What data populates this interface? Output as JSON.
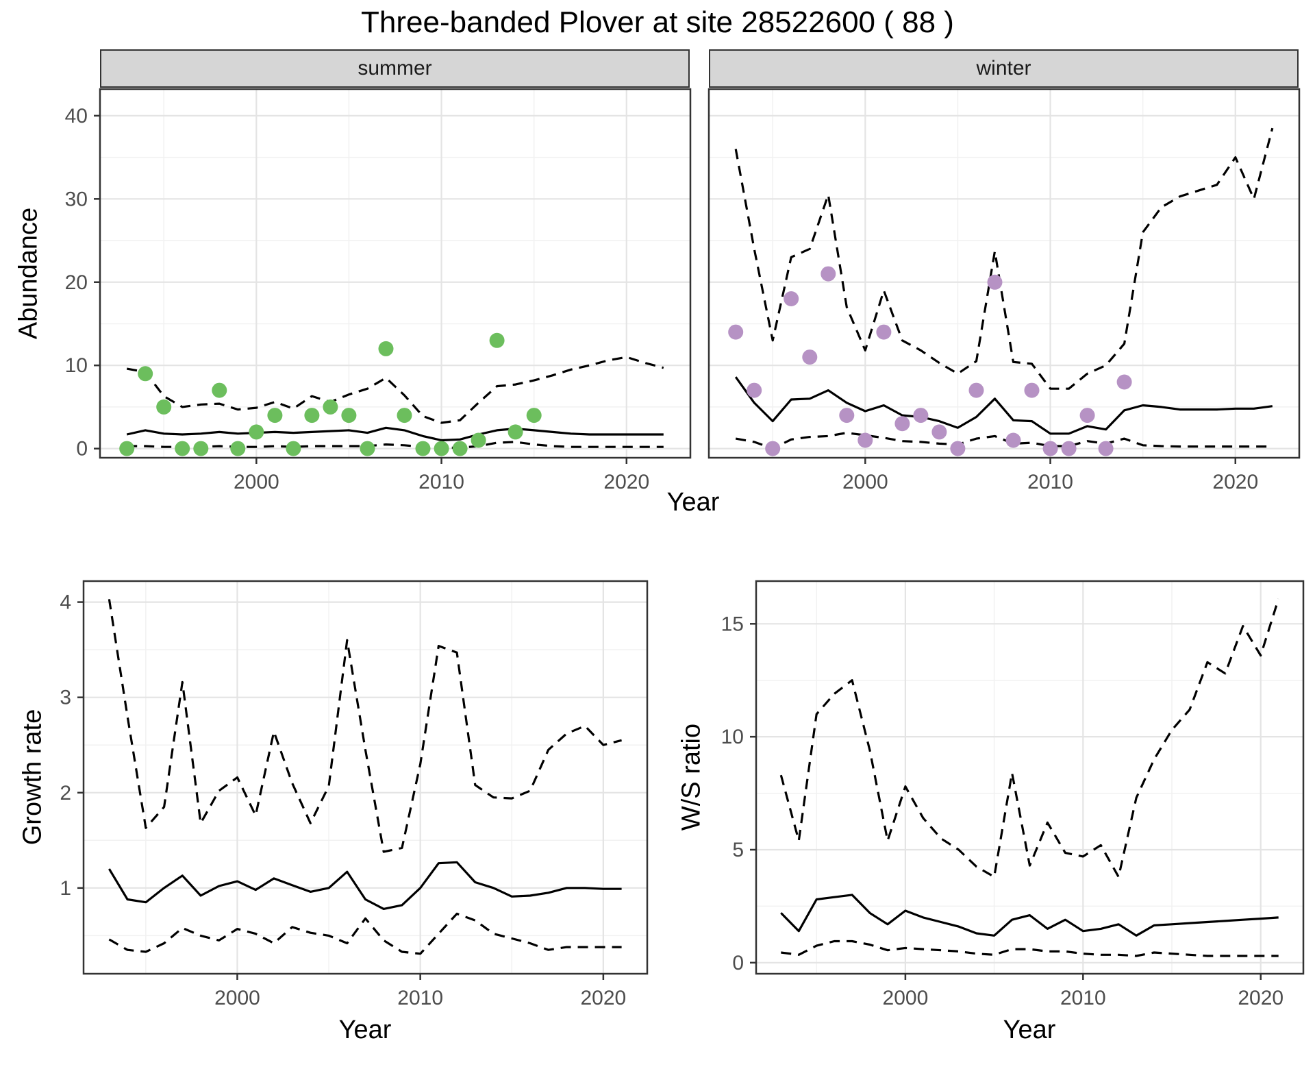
{
  "title": "Three-banded Plover at site 28522600 ( 88 )",
  "facets": {
    "summer": "summer",
    "winter": "winter"
  },
  "axes": {
    "abundance": "Abundance",
    "year": "Year",
    "growth": "Growth rate",
    "ws": "W/S ratio"
  },
  "colors": {
    "summer_points": "#6cbe5d",
    "winter_points": "#b692c4",
    "line": "#000000",
    "strip_bg": "#d6d6d6",
    "panel_border": "#333333",
    "grid_major": "#e4e4e4",
    "grid_minor": "#f1f1f1",
    "tick_text": "#4d4d4d"
  },
  "chart_data": [
    {
      "id": "abundance-summer",
      "type": "line",
      "facet_label": "summer",
      "xlabel": "Year",
      "ylabel": "Abundance",
      "xlim": [
        1991.55,
        2023.45
      ],
      "ylim": [
        -1.1,
        43.2
      ],
      "x_ticks": [
        2000,
        2010,
        2020
      ],
      "x_minor": [
        1995,
        2005,
        2015
      ],
      "y_ticks": [
        0,
        10,
        20,
        30,
        40
      ],
      "y_minor": [
        5,
        15,
        25,
        35
      ],
      "grid": true,
      "legend_position": "none",
      "years": [
        1993,
        1994,
        1995,
        1996,
        1997,
        1998,
        1999,
        2000,
        2001,
        2002,
        2003,
        2004,
        2005,
        2006,
        2007,
        2008,
        2009,
        2010,
        2011,
        2012,
        2013,
        2014,
        2015,
        2016,
        2017,
        2018,
        2019,
        2020,
        2021,
        2022
      ],
      "series": [
        {
          "name": "median",
          "style": "solid",
          "values": [
            1.7,
            2.2,
            1.8,
            1.7,
            1.8,
            2.0,
            1.8,
            1.9,
            2.0,
            1.9,
            2.0,
            2.1,
            2.2,
            1.9,
            2.5,
            2.2,
            1.5,
            1.0,
            1.1,
            1.7,
            2.2,
            2.4,
            2.2,
            2.0,
            1.8,
            1.7,
            1.7,
            1.7,
            1.7,
            1.7
          ]
        },
        {
          "name": "ci_upper",
          "style": "dashed",
          "values": [
            9.6,
            9.2,
            6.3,
            5.0,
            5.3,
            5.4,
            4.7,
            4.9,
            5.6,
            4.8,
            6.3,
            5.6,
            6.5,
            7.2,
            8.5,
            6.4,
            3.9,
            3.1,
            3.4,
            5.5,
            7.5,
            7.7,
            8.2,
            8.8,
            9.5,
            10.0,
            10.6,
            11.0,
            10.3,
            9.7
          ]
        },
        {
          "name": "ci_lower",
          "style": "dashed",
          "values": [
            0.3,
            0.3,
            0.2,
            0.2,
            0.2,
            0.3,
            0.2,
            0.2,
            0.3,
            0.2,
            0.3,
            0.3,
            0.3,
            0.3,
            0.5,
            0.4,
            0.2,
            0.1,
            0.1,
            0.3,
            0.7,
            0.8,
            0.5,
            0.3,
            0.2,
            0.2,
            0.2,
            0.2,
            0.2,
            0.2
          ]
        }
      ],
      "points": {
        "name": "observed-counts",
        "color_key": "summer_points",
        "years": [
          1993,
          1994,
          1995,
          1996,
          1997,
          1998,
          1999,
          2000,
          2001,
          2002,
          2003,
          2004,
          2005,
          2006,
          2007,
          2008,
          2009,
          2010,
          2011,
          2012,
          2013,
          2014,
          2015
        ],
        "values": [
          0,
          9,
          5,
          0,
          0,
          7,
          0,
          2,
          4,
          0,
          4,
          5,
          4,
          0,
          12,
          4,
          0,
          0,
          0,
          1,
          13,
          2,
          4
        ]
      }
    },
    {
      "id": "abundance-winter",
      "type": "line",
      "facet_label": "winter",
      "xlabel": "Year",
      "ylabel": "Abundance",
      "xlim": [
        1991.55,
        2023.45
      ],
      "ylim": [
        -1.1,
        43.2
      ],
      "x_ticks": [
        2000,
        2010,
        2020
      ],
      "x_minor": [
        1995,
        2005,
        2015
      ],
      "y_ticks": [
        0,
        10,
        20,
        30,
        40
      ],
      "y_minor": [
        5,
        15,
        25,
        35
      ],
      "grid": true,
      "legend_position": "none",
      "years": [
        1993,
        1994,
        1995,
        1996,
        1997,
        1998,
        1999,
        2000,
        2001,
        2002,
        2003,
        2004,
        2005,
        2006,
        2007,
        2008,
        2009,
        2010,
        2011,
        2012,
        2013,
        2014,
        2015,
        2016,
        2017,
        2018,
        2019,
        2020,
        2021,
        2022
      ],
      "series": [
        {
          "name": "median",
          "style": "solid",
          "values": [
            8.6,
            5.5,
            3.3,
            5.9,
            6.0,
            7.0,
            5.5,
            4.5,
            5.2,
            4.0,
            3.8,
            3.3,
            2.5,
            3.8,
            6.0,
            3.4,
            3.3,
            1.8,
            1.8,
            2.7,
            2.3,
            4.6,
            5.2,
            5.0,
            4.7,
            4.7,
            4.7,
            4.8,
            4.8,
            5.1
          ]
        },
        {
          "name": "ci_upper",
          "style": "dashed",
          "values": [
            36,
            24,
            13,
            23,
            24,
            30.5,
            17,
            11.8,
            19,
            13,
            11.8,
            10.3,
            9.0,
            10.5,
            23.7,
            10.4,
            10.2,
            7.2,
            7.2,
            9.0,
            10.0,
            12.6,
            26,
            29,
            30.3,
            31,
            31.7,
            35,
            30,
            38.5
          ]
        },
        {
          "name": "ci_lower",
          "style": "dashed",
          "values": [
            1.2,
            0.8,
            0.0,
            1.1,
            1.4,
            1.5,
            1.9,
            1.6,
            1.3,
            0.9,
            0.8,
            0.6,
            0.5,
            1.2,
            1.5,
            0.6,
            0.7,
            0.3,
            0.3,
            0.9,
            0.6,
            1.2,
            0.4,
            0.3,
            0.25,
            0.25,
            0.25,
            0.25,
            0.25,
            0.25
          ]
        }
      ],
      "points": {
        "name": "observed-counts",
        "color_key": "winter_points",
        "years": [
          1993,
          1994,
          1995,
          1996,
          1997,
          1998,
          1999,
          2000,
          2001,
          2002,
          2003,
          2004,
          2005,
          2006,
          2007,
          2008,
          2009,
          2010,
          2011,
          2012,
          2013,
          2014
        ],
        "values": [
          14,
          7,
          0,
          18,
          11,
          21,
          4,
          1,
          14,
          3,
          4,
          2,
          0,
          7,
          20,
          1,
          7,
          0,
          0,
          4,
          0,
          8
        ]
      }
    },
    {
      "id": "growth-rate",
      "type": "line",
      "xlabel": "Year",
      "ylabel": "Growth rate",
      "xlim": [
        1991.6,
        2022.4
      ],
      "ylim": [
        0.1,
        4.22
      ],
      "x_ticks": [
        2000,
        2010,
        2020
      ],
      "x_minor": [
        1995,
        2005,
        2015
      ],
      "y_ticks": [
        1,
        2,
        3,
        4
      ],
      "y_minor": [
        0.5,
        1.5,
        2.5,
        3.5
      ],
      "grid": true,
      "legend_position": "none",
      "years": [
        1993,
        1994,
        1995,
        1996,
        1997,
        1998,
        1999,
        2000,
        2001,
        2002,
        2003,
        2004,
        2005,
        2006,
        2007,
        2008,
        2009,
        2010,
        2011,
        2012,
        2013,
        2014,
        2015,
        2016,
        2017,
        2018,
        2019,
        2020,
        2021
      ],
      "series": [
        {
          "name": "median",
          "style": "solid",
          "values": [
            1.2,
            0.88,
            0.85,
            1.0,
            1.13,
            0.92,
            1.02,
            1.07,
            0.98,
            1.1,
            1.03,
            0.96,
            1.0,
            1.17,
            0.88,
            0.78,
            0.82,
            1.0,
            1.26,
            1.27,
            1.06,
            1.0,
            0.91,
            0.92,
            0.95,
            1.0,
            1.0,
            0.99,
            0.99
          ]
        },
        {
          "name": "ci_upper",
          "style": "dashed",
          "values": [
            4.03,
            2.8,
            1.63,
            1.85,
            3.16,
            1.68,
            2.02,
            2.16,
            1.76,
            2.64,
            2.1,
            1.68,
            2.07,
            3.6,
            2.45,
            1.38,
            1.42,
            2.3,
            3.54,
            3.47,
            2.08,
            1.95,
            1.94,
            2.02,
            2.45,
            2.62,
            2.7,
            2.5,
            2.55
          ]
        },
        {
          "name": "ci_lower",
          "style": "dashed",
          "values": [
            0.46,
            0.35,
            0.33,
            0.42,
            0.58,
            0.5,
            0.45,
            0.57,
            0.52,
            0.42,
            0.59,
            0.53,
            0.5,
            0.42,
            0.68,
            0.45,
            0.33,
            0.31,
            0.52,
            0.73,
            0.66,
            0.52,
            0.47,
            0.42,
            0.35,
            0.38,
            0.38,
            0.38,
            0.38
          ]
        }
      ]
    },
    {
      "id": "ws-ratio",
      "type": "line",
      "xlabel": "Year",
      "ylabel": "W/S ratio",
      "xlim": [
        1991.6,
        2022.4
      ],
      "ylim": [
        -0.49,
        16.89
      ],
      "x_ticks": [
        2000,
        2010,
        2020
      ],
      "x_minor": [
        1995,
        2005,
        2015
      ],
      "y_ticks": [
        0,
        5,
        10,
        15
      ],
      "y_minor": [
        2.5,
        7.5,
        12.5
      ],
      "grid": true,
      "legend_position": "none",
      "years": [
        1993,
        1994,
        1995,
        1996,
        1997,
        1998,
        1999,
        2000,
        2001,
        2002,
        2003,
        2004,
        2005,
        2006,
        2007,
        2008,
        2009,
        2010,
        2011,
        2012,
        2013,
        2014,
        2015,
        2016,
        2017,
        2018,
        2019,
        2020,
        2021
      ],
      "series": [
        {
          "name": "median",
          "style": "solid",
          "values": [
            2.2,
            1.4,
            2.8,
            2.9,
            3.0,
            2.2,
            1.7,
            2.3,
            2.0,
            1.8,
            1.6,
            1.3,
            1.2,
            1.9,
            2.1,
            1.5,
            1.9,
            1.4,
            1.5,
            1.7,
            1.2,
            1.65,
            1.7,
            1.75,
            1.8,
            1.85,
            1.9,
            1.95,
            2.0
          ]
        },
        {
          "name": "ci_upper",
          "style": "dashed",
          "values": [
            8.3,
            5.4,
            11.0,
            11.9,
            12.5,
            9.4,
            5.4,
            7.8,
            6.4,
            5.5,
            5.0,
            4.25,
            3.8,
            8.4,
            4.3,
            6.2,
            4.86,
            4.7,
            5.2,
            3.8,
            7.3,
            9.0,
            10.3,
            11.2,
            13.3,
            12.8,
            14.9,
            13.6,
            16.1
          ]
        },
        {
          "name": "ci_lower",
          "style": "dashed",
          "values": [
            0.45,
            0.35,
            0.75,
            0.95,
            0.95,
            0.8,
            0.55,
            0.65,
            0.6,
            0.55,
            0.5,
            0.4,
            0.35,
            0.6,
            0.6,
            0.5,
            0.5,
            0.4,
            0.35,
            0.35,
            0.3,
            0.45,
            0.4,
            0.35,
            0.3,
            0.3,
            0.3,
            0.3,
            0.3
          ]
        }
      ]
    }
  ]
}
